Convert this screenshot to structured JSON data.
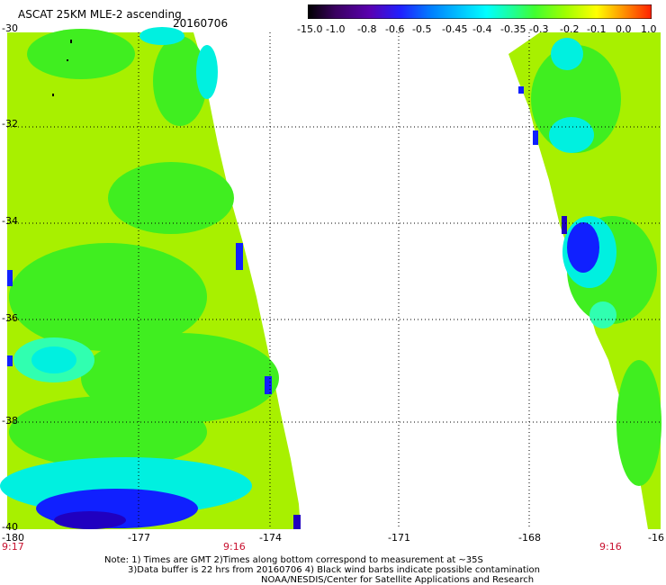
{
  "header": {
    "title": "ASCAT 25KM MLE-2 ascending",
    "date": "20160706"
  },
  "colorbar": {
    "labels": [
      "-15.0",
      "-1.0",
      "-0.8",
      "-0.6",
      "-0.5",
      "-0.45",
      "-0.4",
      "-0.35",
      "-0.3",
      "-0.2",
      "-0.1",
      "0.0",
      "1.0"
    ],
    "colors": [
      "#000000",
      "#3a0060",
      "#5a00b0",
      "#2020ff",
      "#0080ff",
      "#00c8ff",
      "#00ffff",
      "#20ff90",
      "#40ff30",
      "#a0ff00",
      "#ffff00",
      "#ff9000",
      "#ff2000"
    ]
  },
  "axes": {
    "lat_labels": [
      "-30",
      "-32",
      "-34",
      "-36",
      "-38",
      "-40"
    ],
    "lon_labels": [
      "-180",
      "-177",
      "-174",
      "-171",
      "-168",
      "-16"
    ]
  },
  "times": {
    "left": "9:17",
    "middle": "9:16",
    "right": "9:16"
  },
  "notes": {
    "line1": "Note: 1) Times are GMT 2)Times along bottom correspond to measurement at ~35S",
    "line2": "3)Data buffer is 22 hrs from 20160706 4) Black wind barbs indicate possible contamination",
    "line3": "NOAA/NESDIS/Center for Satellite Applications and Research"
  },
  "swath_colors": {
    "base": "#a8f000",
    "green": "#40ee20",
    "cyan": "#00f0e0",
    "teal": "#30ffb0",
    "blue": "#1020ff",
    "darkblue": "#2000c0",
    "purple": "#5000a0"
  }
}
